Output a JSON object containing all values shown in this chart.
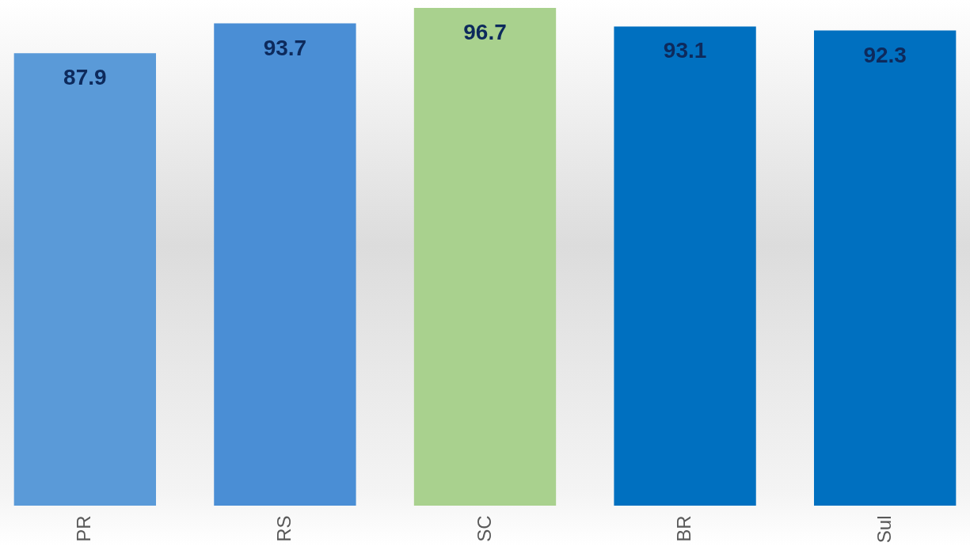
{
  "chart_data": {
    "type": "bar",
    "categories": [
      "PR",
      "RS",
      "SC",
      "BR",
      "Sul"
    ],
    "values": [
      87.9,
      93.7,
      96.7,
      93.1,
      92.3
    ],
    "colors": [
      "#5a9ad8",
      "#4a8ed5",
      "#a9d18e",
      "#0070c0",
      "#0070c0"
    ],
    "data_labels": true,
    "tick_labels": "x"
  }
}
